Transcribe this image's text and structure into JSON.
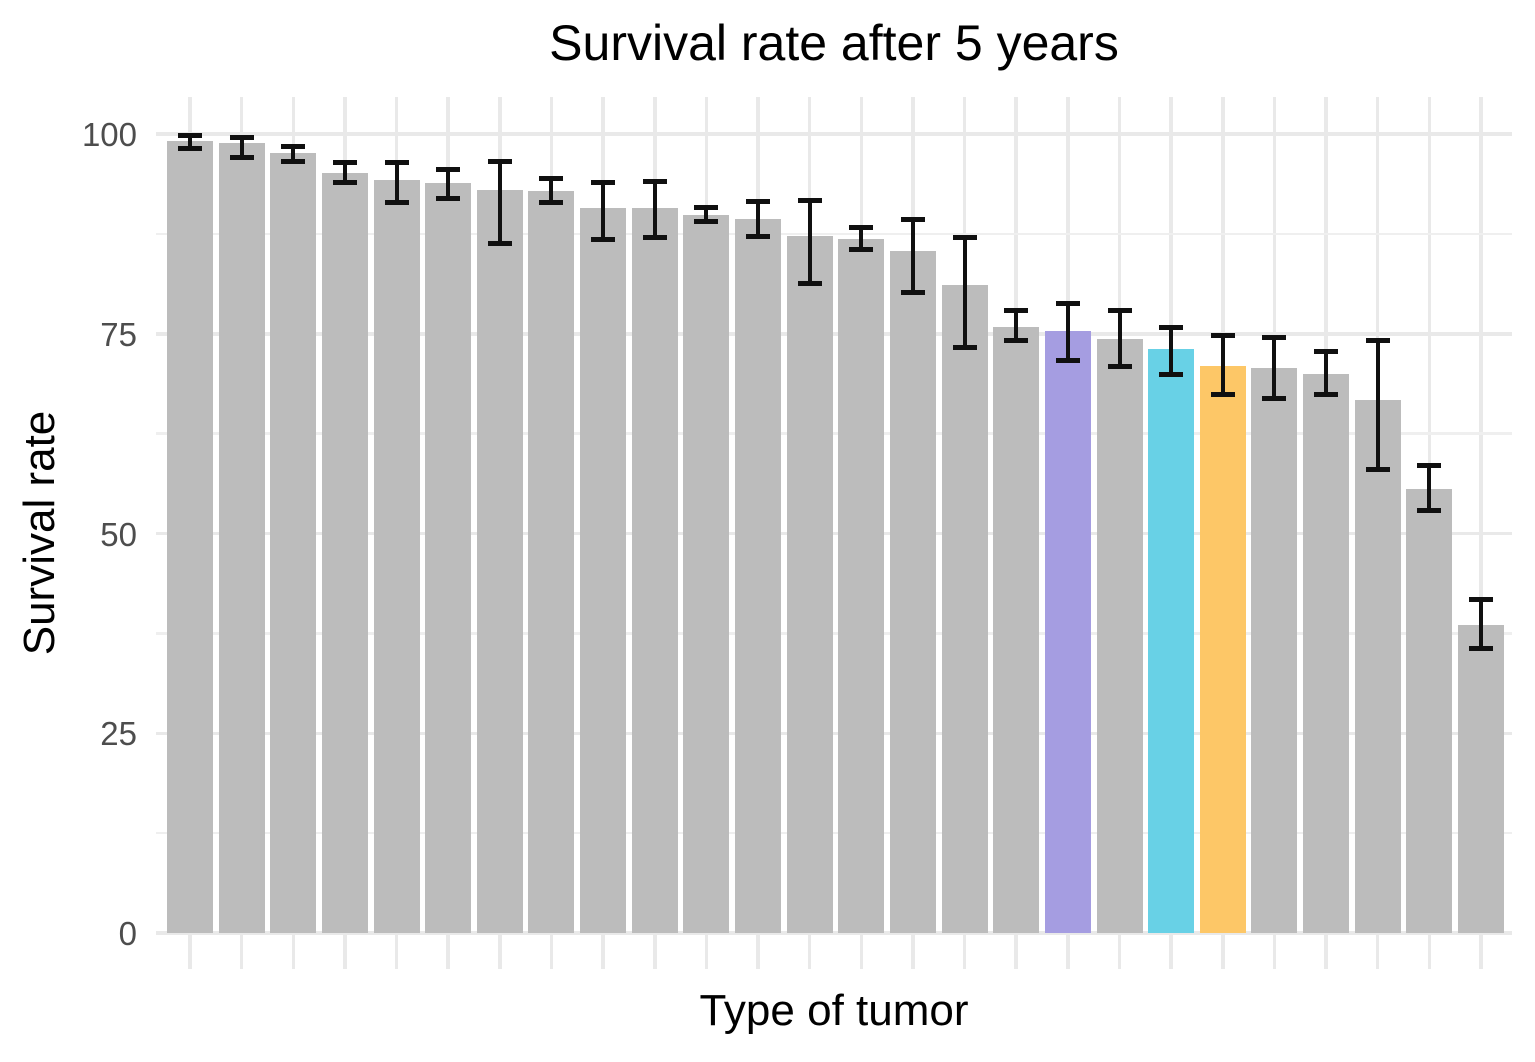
{
  "title": "Survival rate after 5 years",
  "x_axis_title": "Type of tumor",
  "y_axis_title": "Survival rate",
  "y_tick_labels": [
    "100",
    "75",
    "50",
    "25",
    "0"
  ],
  "y_tick_values": [
    100,
    75,
    50,
    25,
    0
  ],
  "colors": {
    "gray": "#bcbcbc",
    "purple": "#a59de1",
    "cyan": "#68d1e6",
    "orange": "#fdc767",
    "errorbar": "#101010",
    "grid_major": "#e9e9e9",
    "grid_minor": "#efefef",
    "tick_label": "#4d4d4d",
    "text": "#000000",
    "background": "#ffffff"
  },
  "chart_data": {
    "type": "bar",
    "title": "Survival rate after 5 years",
    "xlabel": "Type of tumor",
    "ylabel": "Survival rate",
    "ylim": [
      0,
      100
    ],
    "y_major_gridlines": [
      0,
      25,
      50,
      75,
      100
    ],
    "y_minor_gridlines": [
      12.5,
      37.5,
      62.5,
      87.5
    ],
    "grid": true,
    "legend": false,
    "x_category_labels_visible": false,
    "bars": [
      {
        "value": 99.1,
        "err_low": 98.2,
        "err_high": 99.8,
        "color": "gray"
      },
      {
        "value": 98.9,
        "err_low": 97.0,
        "err_high": 99.6,
        "color": "gray"
      },
      {
        "value": 97.6,
        "err_low": 96.6,
        "err_high": 98.4,
        "color": "gray"
      },
      {
        "value": 95.1,
        "err_low": 93.9,
        "err_high": 96.4,
        "color": "gray"
      },
      {
        "value": 94.2,
        "err_low": 91.4,
        "err_high": 96.4,
        "color": "gray"
      },
      {
        "value": 93.9,
        "err_low": 91.9,
        "err_high": 95.6,
        "color": "gray"
      },
      {
        "value": 93.0,
        "err_low": 86.3,
        "err_high": 96.6,
        "color": "gray"
      },
      {
        "value": 92.9,
        "err_low": 91.4,
        "err_high": 94.4,
        "color": "gray"
      },
      {
        "value": 90.7,
        "err_low": 86.8,
        "err_high": 93.9,
        "color": "gray"
      },
      {
        "value": 90.7,
        "err_low": 87.0,
        "err_high": 94.0,
        "color": "gray"
      },
      {
        "value": 89.8,
        "err_low": 89.1,
        "err_high": 90.8,
        "color": "gray"
      },
      {
        "value": 89.3,
        "err_low": 87.2,
        "err_high": 91.5,
        "color": "gray"
      },
      {
        "value": 87.2,
        "err_low": 81.3,
        "err_high": 91.7,
        "color": "gray"
      },
      {
        "value": 86.8,
        "err_low": 85.5,
        "err_high": 88.3,
        "color": "gray"
      },
      {
        "value": 85.3,
        "err_low": 80.2,
        "err_high": 89.3,
        "color": "gray"
      },
      {
        "value": 81.1,
        "err_low": 73.3,
        "err_high": 87.0,
        "color": "gray"
      },
      {
        "value": 75.9,
        "err_low": 74.2,
        "err_high": 77.9,
        "color": "gray"
      },
      {
        "value": 75.3,
        "err_low": 71.7,
        "err_high": 78.8,
        "color": "purple"
      },
      {
        "value": 74.4,
        "err_low": 70.9,
        "err_high": 77.9,
        "color": "gray"
      },
      {
        "value": 73.1,
        "err_low": 69.9,
        "err_high": 75.8,
        "color": "cyan"
      },
      {
        "value": 71.0,
        "err_low": 67.4,
        "err_high": 74.8,
        "color": "orange"
      },
      {
        "value": 70.7,
        "err_low": 66.9,
        "err_high": 74.5,
        "color": "gray"
      },
      {
        "value": 70.0,
        "err_low": 67.4,
        "err_high": 72.8,
        "color": "gray"
      },
      {
        "value": 66.7,
        "err_low": 58.0,
        "err_high": 74.2,
        "color": "gray"
      },
      {
        "value": 55.6,
        "err_low": 52.9,
        "err_high": 58.5,
        "color": "gray"
      },
      {
        "value": 38.6,
        "err_low": 35.6,
        "err_high": 41.7,
        "color": "gray"
      }
    ]
  }
}
